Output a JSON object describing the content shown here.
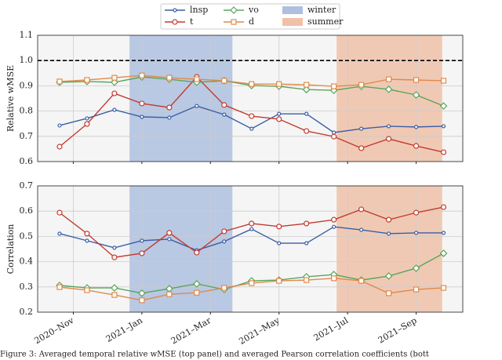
{
  "chart_data": [
    {
      "type": "line",
      "ylabel": "Relative wMSE",
      "x": [
        0,
        1,
        2,
        3,
        4,
        5,
        6,
        7,
        8,
        9,
        10,
        11,
        12,
        13,
        14
      ],
      "xlim": [
        -0.8,
        14.7
      ],
      "xticks": [
        0.5,
        3,
        5.5,
        8,
        10.5,
        13
      ],
      "ylim": [
        0.6,
        1.1
      ],
      "yticks": [
        0.6,
        0.7,
        0.8,
        0.9,
        {
          "value": 1,
          "label": "1.0"
        },
        1.1
      ],
      "hline": 1,
      "grid": true,
      "spans": [
        {
          "name": "winter",
          "color": "#aebfdf",
          "range": [
            2.55,
            6.3
          ]
        },
        {
          "name": "summer",
          "color": "#efc1a8",
          "range": [
            10.1,
            13.95
          ]
        }
      ],
      "series": [
        {
          "name": "lnsp",
          "color": "#3b5ea6",
          "marker": "circle",
          "values": [
            0.743,
            0.771,
            0.805,
            0.777,
            0.774,
            0.82,
            0.786,
            0.73,
            0.789,
            0.789,
            0.715,
            0.73,
            0.74,
            0.737,
            0.74
          ]
        },
        {
          "name": "t",
          "color": "#c23b30",
          "marker": "circle",
          "values": [
            0.659,
            0.749,
            0.87,
            0.83,
            0.814,
            0.935,
            0.824,
            0.78,
            0.768,
            0.721,
            0.699,
            0.653,
            0.69,
            0.662,
            0.637
          ]
        },
        {
          "name": "vo",
          "color": "#5aa55a",
          "marker": "diamond",
          "values": [
            0.914,
            0.917,
            0.914,
            0.935,
            0.926,
            0.914,
            0.92,
            0.901,
            0.898,
            0.885,
            0.882,
            0.898,
            0.886,
            0.864,
            0.82
          ]
        },
        {
          "name": "d",
          "color": "#e08a4a",
          "marker": "square",
          "values": [
            0.917,
            0.923,
            0.932,
            0.941,
            0.932,
            0.926,
            0.92,
            0.907,
            0.907,
            0.904,
            0.898,
            0.904,
            0.926,
            0.923,
            0.92
          ]
        }
      ]
    },
    {
      "type": "line",
      "ylabel": "Correlation",
      "x": [
        0,
        1,
        2,
        3,
        4,
        5,
        6,
        7,
        8,
        9,
        10,
        11,
        12,
        13,
        14
      ],
      "xlim": [
        -0.8,
        14.7
      ],
      "xticks": [
        {
          "value": 0.5,
          "label": "2020–Nov"
        },
        {
          "value": 3,
          "label": "2021–Jan"
        },
        {
          "value": 5.5,
          "label": "2021–Mar"
        },
        {
          "value": 8,
          "label": "2021–May"
        },
        {
          "value": 10.5,
          "label": "2021–Jul"
        },
        {
          "value": 13,
          "label": "2021–Sep"
        }
      ],
      "ylim": [
        0.2,
        0.7
      ],
      "yticks": [
        0.2,
        0.3,
        0.4,
        0.5,
        0.6,
        0.7
      ],
      "grid": true,
      "spans": [
        {
          "name": "winter",
          "color": "#aebfdf",
          "range": [
            2.55,
            6.3
          ]
        },
        {
          "name": "summer",
          "color": "#efc1a8",
          "range": [
            10.1,
            13.95
          ]
        }
      ],
      "series": [
        {
          "name": "lnsp",
          "color": "#3b5ea6",
          "marker": "circle",
          "values": [
            0.511,
            0.483,
            0.455,
            0.483,
            0.489,
            0.445,
            0.48,
            0.529,
            0.473,
            0.473,
            0.538,
            0.526,
            0.511,
            0.514,
            0.514
          ]
        },
        {
          "name": "t",
          "color": "#c23b30",
          "marker": "circle",
          "values": [
            0.594,
            0.511,
            0.417,
            0.433,
            0.514,
            0.436,
            0.52,
            0.551,
            0.539,
            0.551,
            0.566,
            0.607,
            0.566,
            0.594,
            0.616
          ]
        },
        {
          "name": "vo",
          "color": "#5aa55a",
          "marker": "diamond",
          "values": [
            0.306,
            0.296,
            0.296,
            0.275,
            0.293,
            0.312,
            0.29,
            0.324,
            0.327,
            0.34,
            0.349,
            0.327,
            0.343,
            0.374,
            0.433
          ]
        },
        {
          "name": "d",
          "color": "#e08a4a",
          "marker": "square",
          "values": [
            0.299,
            0.287,
            0.268,
            0.247,
            0.271,
            0.277,
            0.296,
            0.315,
            0.324,
            0.327,
            0.334,
            0.324,
            0.275,
            0.29,
            0.296
          ]
        }
      ]
    }
  ],
  "caption": "Figure 3: Averaged temporal relative wMSE (top panel) and averaged Pearson correlation coefficients (bott"
}
